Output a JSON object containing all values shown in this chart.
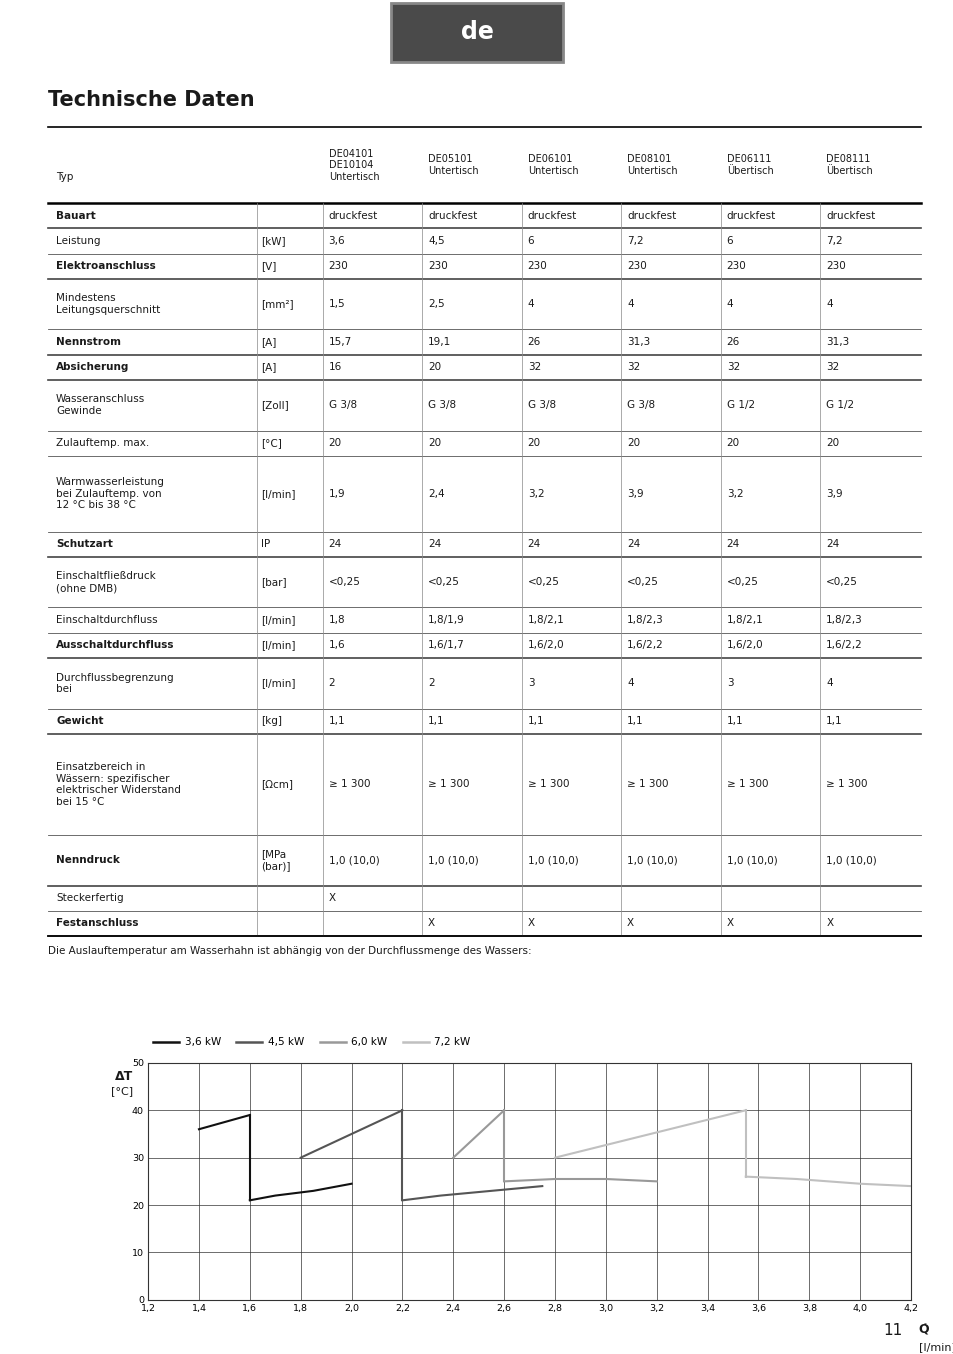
{
  "title": "Technische Daten",
  "header_label": "de",
  "table_headers_col0": "Typ",
  "table_headers": [
    "DE04101\nDE10104\nUntertisch",
    "DE05101\nUntertisch",
    "DE06101\nUntertisch",
    "DE08101\nUntertisch",
    "DE06111\nÜbertisch",
    "DE08111\nÜbertisch"
  ],
  "table_rows": [
    {
      "label": "Bauart",
      "unit": "",
      "shaded": true,
      "bold": true,
      "values": [
        "druckfest",
        "druckfest",
        "druckfest",
        "druckfest",
        "druckfest",
        "druckfest"
      ]
    },
    {
      "label": "Leistung",
      "unit": "[kW]",
      "shaded": false,
      "bold": false,
      "values": [
        "3,6",
        "4,5",
        "6",
        "7,2",
        "6",
        "7,2"
      ]
    },
    {
      "label": "Elektroanschluss",
      "unit": "[V]",
      "shaded": true,
      "bold": true,
      "values": [
        "230",
        "230",
        "230",
        "230",
        "230",
        "230"
      ]
    },
    {
      "label": "Mindestens\nLeitungsquerschnitt",
      "unit": "[mm²]",
      "shaded": false,
      "bold": false,
      "values": [
        "1,5",
        "2,5",
        "4",
        "4",
        "4",
        "4"
      ]
    },
    {
      "label": "Nennstrom",
      "unit": "[A]",
      "shaded": true,
      "bold": true,
      "values": [
        "15,7",
        "19,1",
        "26",
        "31,3",
        "26",
        "31,3"
      ]
    },
    {
      "label": "Absicherung",
      "unit": "[A]",
      "shaded": true,
      "bold": true,
      "values": [
        "16",
        "20",
        "32",
        "32",
        "32",
        "32"
      ]
    },
    {
      "label": "Wasseranschluss\nGewinde",
      "unit": "[Zoll]",
      "shaded": false,
      "bold": false,
      "values": [
        "G 3/8",
        "G 3/8",
        "G 3/8",
        "G 3/8",
        "G 1/2",
        "G 1/2"
      ]
    },
    {
      "label": "Zulauftemp. max.",
      "unit": "[°C]",
      "shaded": false,
      "bold": false,
      "values": [
        "20",
        "20",
        "20",
        "20",
        "20",
        "20"
      ]
    },
    {
      "label": "Warmwasserleistung\nbei Zulauftemp. von\n12 °C bis 38 °C",
      "unit": "[l/min]",
      "shaded": false,
      "bold": false,
      "values": [
        "1,9",
        "2,4",
        "3,2",
        "3,9",
        "3,2",
        "3,9"
      ]
    },
    {
      "label": "Schutzart",
      "unit": "IP",
      "shaded": true,
      "bold": true,
      "values": [
        "24",
        "24",
        "24",
        "24",
        "24",
        "24"
      ]
    },
    {
      "label": "Einschaltfließdruck\n(ohne DMB)",
      "unit": "[bar]",
      "shaded": false,
      "bold": false,
      "values": [
        "<0,25",
        "<0,25",
        "<0,25",
        "<0,25",
        "<0,25",
        "<0,25"
      ]
    },
    {
      "label": "Einschaltdurchfluss",
      "unit": "[l/min]",
      "shaded": false,
      "bold": false,
      "values": [
        "1,8",
        "1,8/1,9",
        "1,8/2,1",
        "1,8/2,3",
        "1,8/2,1",
        "1,8/2,3"
      ]
    },
    {
      "label": "Ausschaltdurchfluss",
      "unit": "[l/min]",
      "shaded": true,
      "bold": true,
      "values": [
        "1,6",
        "1,6/1,7",
        "1,6/2,0",
        "1,6/2,2",
        "1,6/2,0",
        "1,6/2,2"
      ]
    },
    {
      "label": "Durchflussbegrenzung\nbei",
      "unit": "[l/min]",
      "shaded": false,
      "bold": false,
      "values": [
        "2",
        "2",
        "3",
        "4",
        "3",
        "4"
      ]
    },
    {
      "label": "Gewicht",
      "unit": "[kg]",
      "shaded": true,
      "bold": true,
      "values": [
        "1,1",
        "1,1",
        "1,1",
        "1,1",
        "1,1",
        "1,1"
      ]
    },
    {
      "label": "Einsatzbereich in\nWässern: spezifischer\nelektrischer Widerstand\nbei 15 °C",
      "unit": "[Ωcm]",
      "shaded": false,
      "bold": false,
      "values": [
        "≥ 1 300",
        "≥ 1 300",
        "≥ 1 300",
        "≥ 1 300",
        "≥ 1 300",
        "≥ 1 300"
      ]
    },
    {
      "label": "Nenndruck",
      "unit": "[MPa\n(bar)]",
      "shaded": true,
      "bold": true,
      "values": [
        "1,0 (10,0)",
        "1,0 (10,0)",
        "1,0 (10,0)",
        "1,0 (10,0)",
        "1,0 (10,0)",
        "1,0 (10,0)"
      ]
    },
    {
      "label": "Steckerfertig",
      "unit": "",
      "shaded": false,
      "bold": false,
      "values": [
        "X",
        "",
        "",
        "",
        "",
        ""
      ]
    },
    {
      "label": "Festanschluss",
      "unit": "",
      "shaded": true,
      "bold": true,
      "values": [
        "",
        "X",
        "X",
        "X",
        "X",
        "X"
      ]
    }
  ],
  "chart_text": "Die Auslauftemperatur am Wasserhahn ist abhängig von der Durchflussmenge des Wassers:",
  "page_number": "11",
  "bg_color": "#ffffff",
  "header_bg": "#d8d8d8",
  "shaded_bg": "#ebebeb",
  "border_color": "#000000",
  "light_border": "#aaaaaa"
}
